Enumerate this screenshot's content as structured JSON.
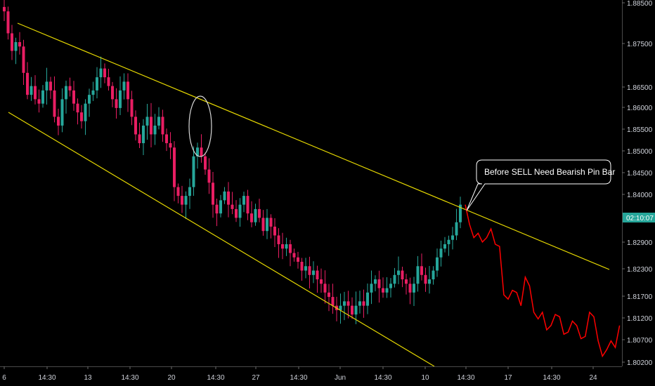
{
  "chart_data": {
    "type": "candlestick",
    "price_axis_ticks": [
      "1.88500",
      "1.87500",
      "1.86500",
      "1.86000",
      "1.85500",
      "1.85000",
      "1.84500",
      "1.84000",
      "1.82900",
      "1.82300",
      "1.81700",
      "1.81200",
      "1.80700",
      "1.80200"
    ],
    "price_axis_values": [
      1.885,
      1.875,
      1.865,
      1.86,
      1.855,
      1.85,
      1.845,
      1.84,
      1.829,
      1.823,
      1.817,
      1.812,
      1.807,
      1.802
    ],
    "time_axis_labels": [
      "6",
      "14:30",
      "13",
      "14:30",
      "20",
      "14:30",
      "27",
      "14:30",
      "Jun",
      "14:30",
      "10",
      "14:30",
      "17",
      "14:30",
      "24"
    ],
    "current_price_label": "02:10:07",
    "current_price": 1.835,
    "annotation": "Before  SELL Need Bearish Pin Bar",
    "colors": {
      "bull": "#26a69a",
      "bear": "#ef5350",
      "bear_body": "#e91e63",
      "channel": "#e6d800",
      "projection": "#ff0000",
      "ellipse": "#d8d8d8",
      "background": "#000000",
      "axis_text": "#d1d4dc"
    },
    "channel_upper": [
      [
        1.8825,
        1.8215
      ]
    ],
    "channel_lower": [
      [
        1.8595,
        1.8015
      ]
    ],
    "candles_close": [
      1.882,
      1.877,
      1.873,
      1.875,
      1.874,
      1.868,
      1.863,
      1.865,
      1.862,
      1.861,
      1.864,
      1.866,
      1.864,
      1.858,
      1.856,
      1.862,
      1.865,
      1.864,
      1.861,
      1.859,
      1.857,
      1.861,
      1.863,
      1.864,
      1.867,
      1.869,
      1.867,
      1.865,
      1.862,
      1.86,
      1.864,
      1.866,
      1.862,
      1.858,
      1.854,
      1.852,
      1.856,
      1.858,
      1.854,
      1.856,
      1.858,
      1.854,
      1.852,
      1.851,
      1.842,
      1.84,
      1.838,
      1.84,
      1.842,
      1.849,
      1.851,
      1.849,
      1.846,
      1.843,
      1.838,
      1.836,
      1.839,
      1.841,
      1.838,
      1.837,
      1.835,
      1.838,
      1.84,
      1.836,
      1.834,
      1.837,
      1.835,
      1.832,
      1.835,
      1.833,
      1.831,
      1.829,
      1.828,
      1.829,
      1.827,
      1.826,
      1.825,
      1.823,
      1.824,
      1.822,
      1.823,
      1.821,
      1.82,
      1.818,
      1.817,
      1.815,
      1.814,
      1.815,
      1.816,
      1.815,
      1.813,
      1.815,
      1.816,
      1.815,
      1.818,
      1.82,
      1.821,
      1.819,
      1.818,
      1.819,
      1.82,
      1.822,
      1.823,
      1.821,
      1.82,
      1.818,
      1.82,
      1.824,
      1.822,
      1.82,
      1.821,
      1.823,
      1.826,
      1.828,
      1.829,
      1.83,
      1.831,
      1.834,
      1.838
    ],
    "projection_path": [
      1.838,
      1.8335,
      1.8305,
      1.8315,
      1.8295,
      1.8305,
      1.8325,
      1.829,
      1.8285,
      1.8175,
      1.8165,
      1.8185,
      1.818,
      1.815,
      1.8215,
      1.8195,
      1.8135,
      1.812,
      1.8135,
      1.8095,
      1.8105,
      1.813,
      1.8125,
      1.8085,
      1.809,
      1.8115,
      1.8105,
      1.8075,
      1.808,
      1.8135,
      1.8125,
      1.807,
      1.8035,
      1.805,
      1.807,
      1.8055,
      1.8105
    ]
  }
}
